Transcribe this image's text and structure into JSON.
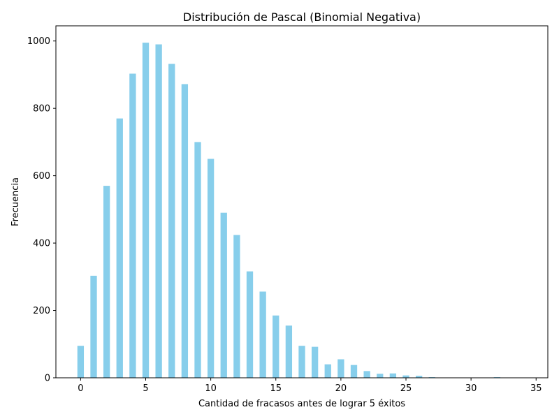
{
  "chart_data": {
    "type": "bar",
    "title": "Distribución de Pascal (Binomial Negativa)",
    "xlabel": "Cantidad de fracasos antes de lograr 5 éxitos",
    "ylabel": "Frecuencia",
    "x": [
      0,
      1,
      2,
      3,
      4,
      5,
      6,
      7,
      8,
      9,
      10,
      11,
      12,
      13,
      14,
      15,
      16,
      17,
      18,
      19,
      20,
      21,
      22,
      23,
      24,
      25,
      26,
      27,
      28,
      29,
      30,
      31,
      32,
      33,
      34
    ],
    "values": [
      95,
      303,
      570,
      770,
      903,
      995,
      990,
      932,
      872,
      700,
      650,
      490,
      424,
      316,
      256,
      185,
      155,
      95,
      92,
      40,
      55,
      38,
      20,
      12,
      13,
      7,
      6,
      2,
      1,
      0,
      0,
      0,
      2,
      0,
      1
    ],
    "xlim": [
      -1.9,
      35.9
    ],
    "ylim": [
      0,
      1045
    ],
    "xticks": [
      0,
      5,
      10,
      15,
      20,
      25,
      30,
      35
    ],
    "yticks": [
      0,
      200,
      400,
      600,
      800,
      1000
    ],
    "bar_color": "#87ceeb",
    "grid": false,
    "legend": "none"
  }
}
